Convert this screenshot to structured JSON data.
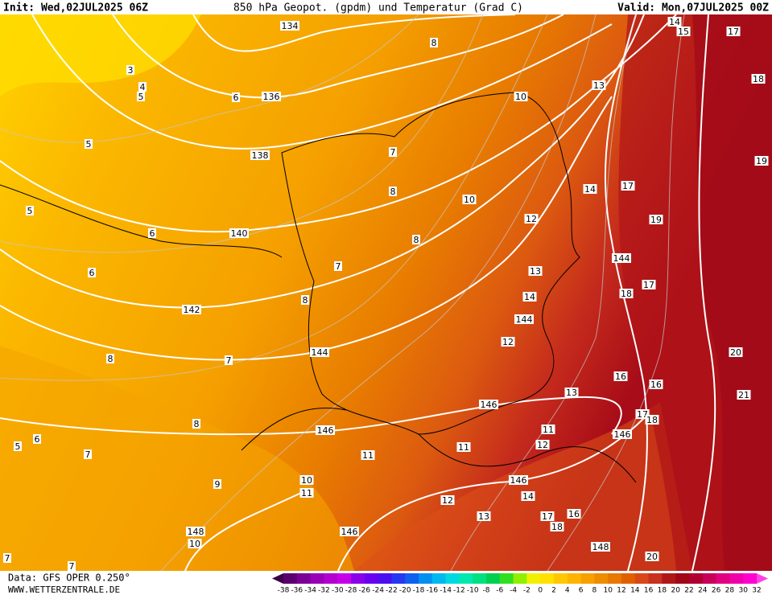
{
  "header": {
    "init": "Init: Wed,02JUL2025 06Z",
    "title": "850 hPa Geopot. (gpdm) und Temperatur (Grad C)",
    "valid": "Valid: Mon,07JUL2025 00Z"
  },
  "map": {
    "geopotential_labels": [
      134,
      136,
      138,
      140,
      142,
      144,
      146,
      148,
      146,
      146,
      146,
      146,
      144,
      144,
      148
    ],
    "temperature_labels": [
      10,
      10,
      12,
      13,
      14,
      12,
      13,
      11,
      12,
      11,
      11,
      10,
      11,
      12,
      13,
      14,
      17,
      16,
      18,
      13,
      14,
      17,
      19,
      17,
      18,
      16,
      16,
      17,
      18,
      20,
      21,
      19,
      18,
      17,
      15,
      14,
      20,
      10,
      9,
      8,
      7,
      6,
      5,
      8,
      7,
      8,
      7,
      8,
      8,
      7,
      8,
      6,
      6,
      5,
      5,
      5,
      4,
      3,
      6,
      7,
      7
    ]
  },
  "colorbar": {
    "labels": [
      -38,
      -36,
      -34,
      -32,
      -30,
      -28,
      -26,
      -24,
      -22,
      -20,
      -18,
      -16,
      -14,
      -12,
      -10,
      -8,
      -6,
      -4,
      -2,
      0,
      2,
      4,
      6,
      8,
      10,
      12,
      14,
      16,
      18,
      20,
      22,
      24,
      26,
      28,
      30,
      32
    ],
    "colors": [
      "#3c0046",
      "#5a0070",
      "#7a0096",
      "#9a00b8",
      "#b400d0",
      "#c800e8",
      "#8a00e8",
      "#6a00f0",
      "#4a10f0",
      "#2838f0",
      "#1060f0",
      "#0090f0",
      "#00b8f0",
      "#00d8e0",
      "#00e8b0",
      "#00e080",
      "#00d050",
      "#30e020",
      "#90f000",
      "#f0f000",
      "#ffe000",
      "#ffc800",
      "#ffb400",
      "#f8a000",
      "#f08c00",
      "#e87800",
      "#e06000",
      "#d84818",
      "#c83020",
      "#b01818",
      "#a00818",
      "#b00030",
      "#c80058",
      "#e00080",
      "#f000a8",
      "#ff00d0",
      "#ff40e8"
    ]
  },
  "footer": {
    "data": "Data: GFS OPER 0.250°",
    "site": "WWW.WETTERZENTRALE.DE"
  }
}
